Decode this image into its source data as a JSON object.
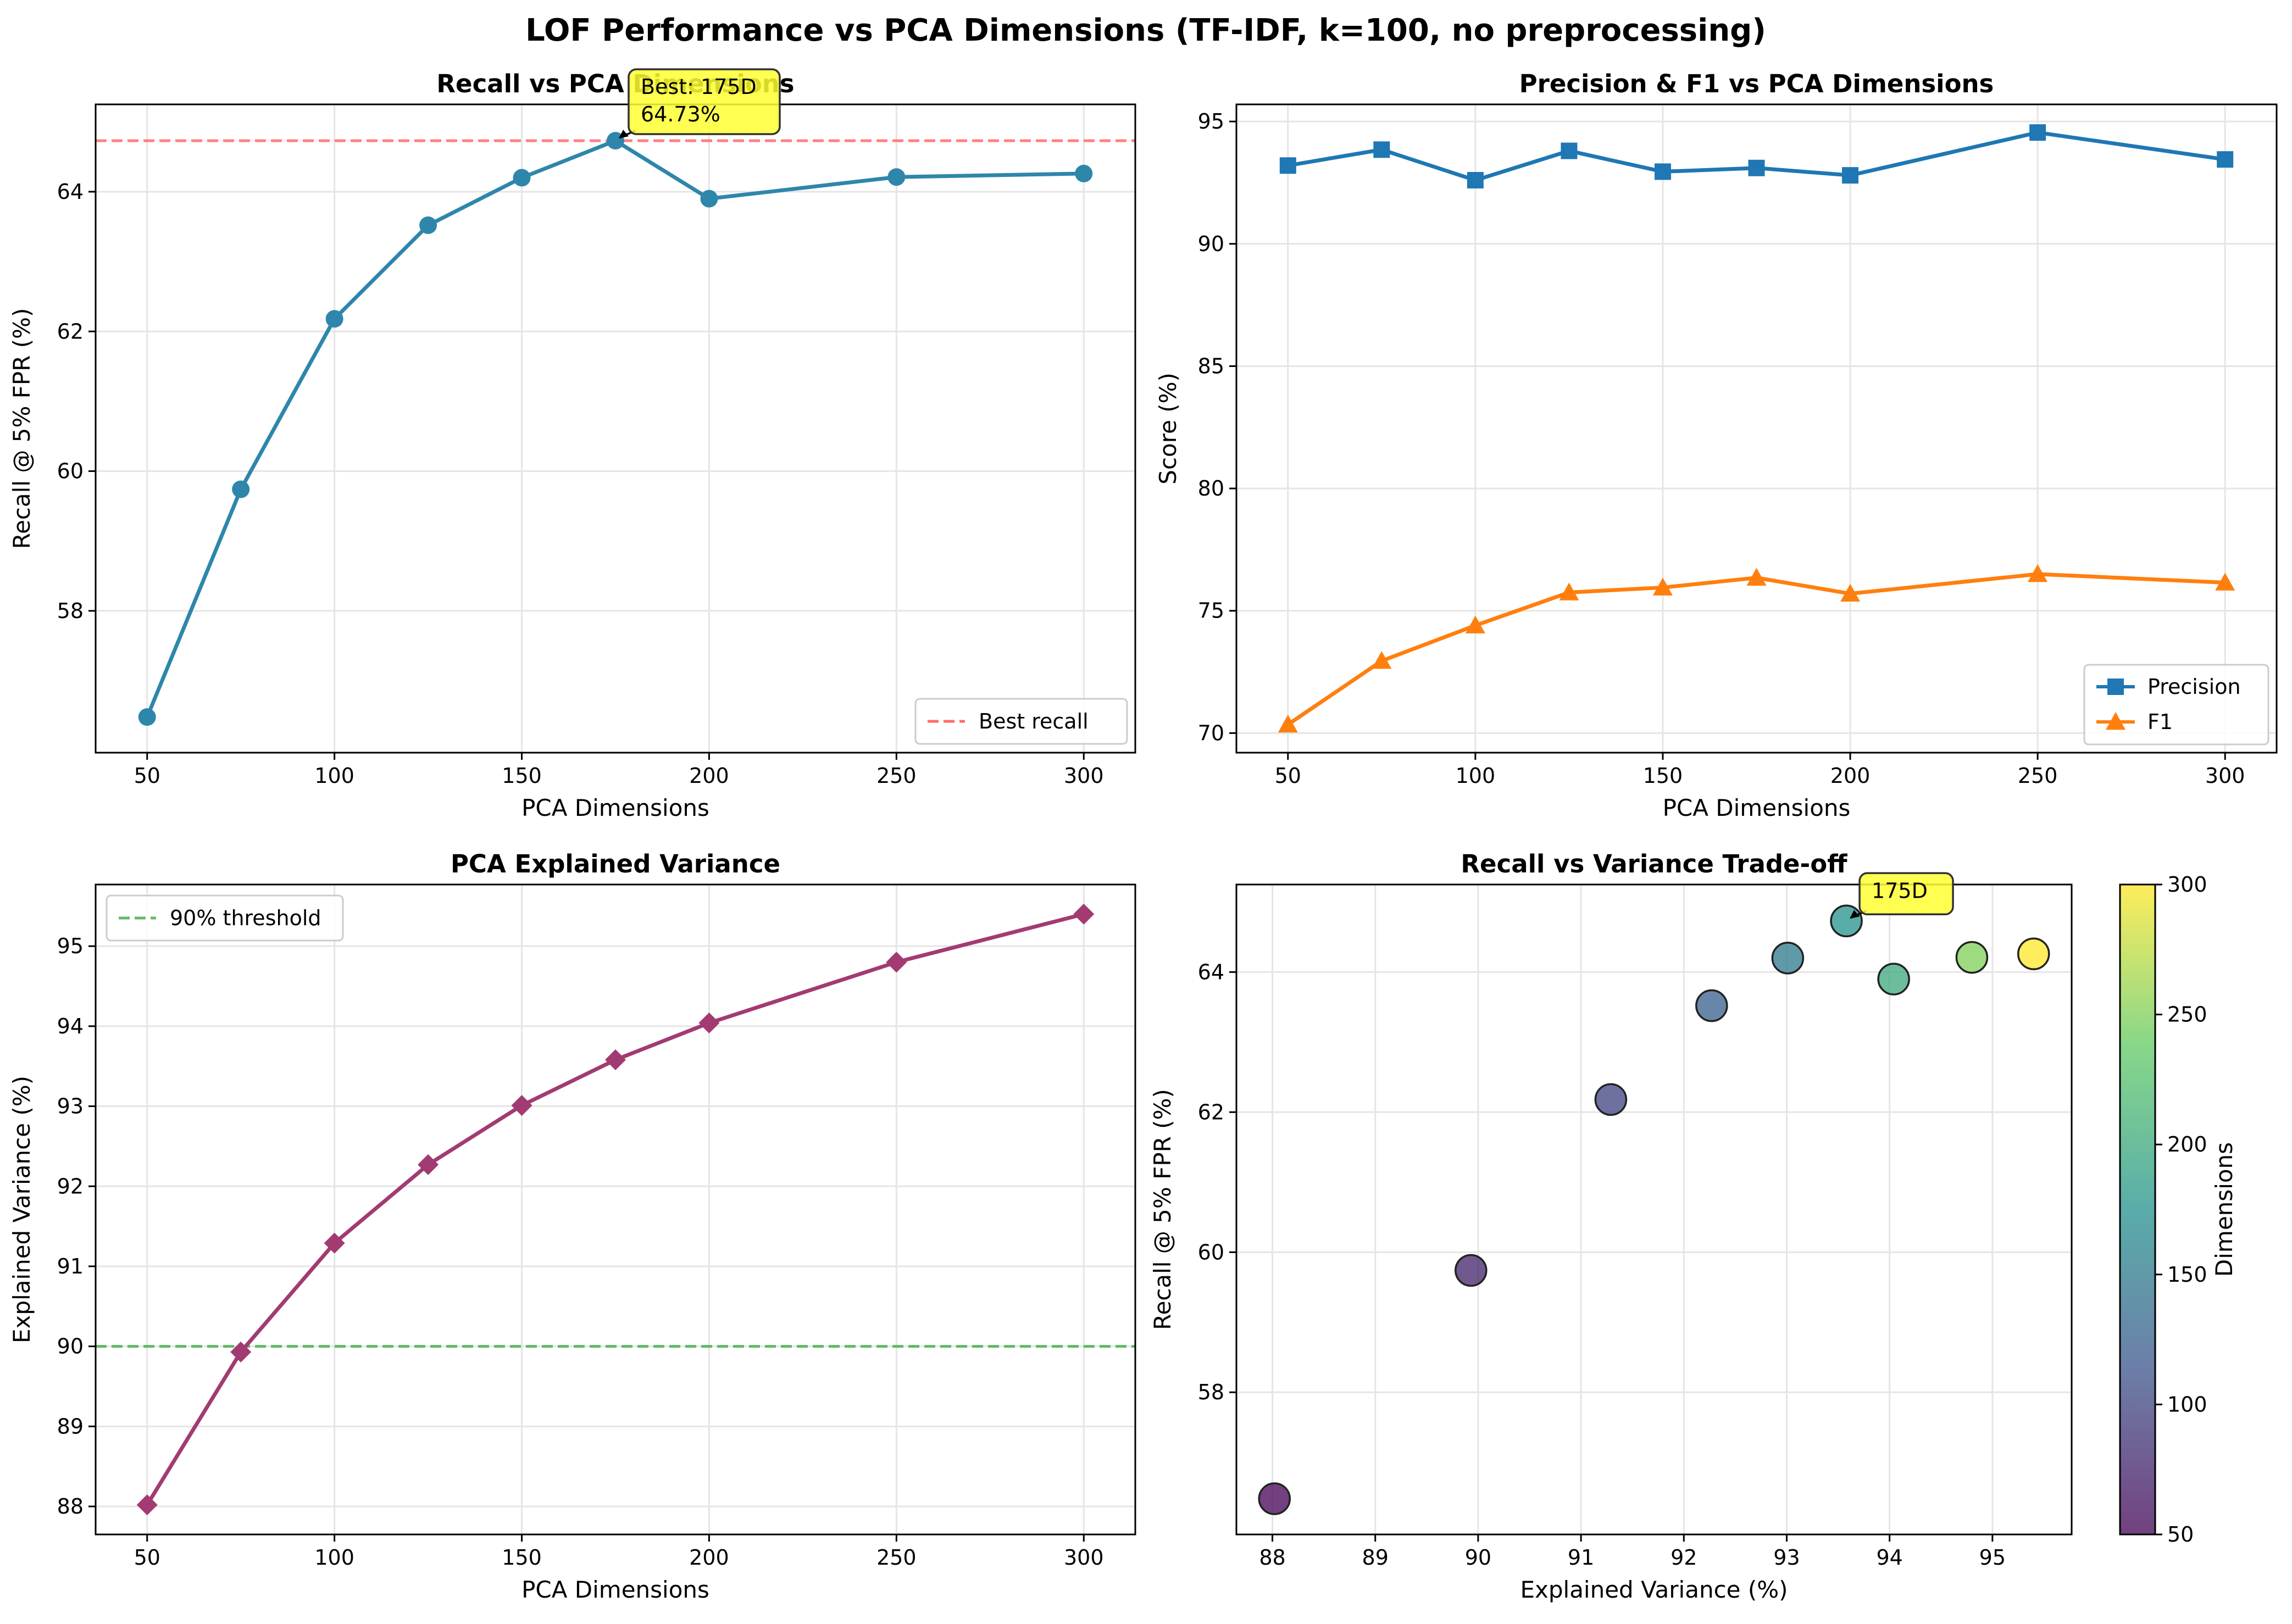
{
  "figure": {
    "title": "LOF Performance vs PCA Dimensions (TF-IDF, k=100, no preprocessing)"
  },
  "chart_data": [
    {
      "type": "line",
      "title": "Recall vs PCA Dimensions",
      "xlabel": "PCA Dimensions",
      "ylabel": "Recall @ 5% FPR (%)",
      "x": [
        50,
        75,
        100,
        125,
        150,
        175,
        200,
        250,
        300
      ],
      "xticks": [
        50,
        100,
        150,
        200,
        250,
        300
      ],
      "xlim": [
        36.25,
        313.75
      ],
      "yticks": [
        58,
        60,
        62,
        64
      ],
      "ylim": [
        55.97,
        65.25
      ],
      "grid": true,
      "series": [
        {
          "values": [
            56.48,
            59.74,
            62.18,
            63.52,
            64.2,
            64.73,
            63.9,
            64.21,
            64.26
          ],
          "color": "#2E86AB",
          "marker": "circle"
        }
      ],
      "reference_line": {
        "y": 64.73,
        "label": "Best recall",
        "color": "#ff6b6b",
        "style": "dashed"
      },
      "annotation": {
        "lines": [
          "Best: 175D",
          "64.73%"
        ],
        "x": 175,
        "y": 64.73
      },
      "legend_position": "lower right"
    },
    {
      "type": "line",
      "title": "Precision & F1 vs PCA Dimensions",
      "xlabel": "PCA Dimensions",
      "ylabel": "Score (%)",
      "x": [
        50,
        75,
        100,
        125,
        150,
        175,
        200,
        250,
        300
      ],
      "xticks": [
        50,
        100,
        150,
        200,
        250,
        300
      ],
      "xlim": [
        36.25,
        313.75
      ],
      "yticks": [
        70,
        75,
        80,
        85,
        90,
        95
      ],
      "ylim": [
        69.2,
        95.7
      ],
      "grid": true,
      "series": [
        {
          "name": "Precision",
          "values": [
            93.2,
            93.85,
            92.6,
            93.8,
            92.95,
            93.1,
            92.8,
            94.55,
            93.45
          ],
          "color": "#1f77b4",
          "marker": "square"
        },
        {
          "name": "F1",
          "values": [
            70.35,
            72.95,
            74.4,
            75.75,
            75.95,
            76.35,
            75.7,
            76.5,
            76.15
          ],
          "color": "#ff7f0e",
          "marker": "triangle"
        }
      ],
      "legend_position": "lower right"
    },
    {
      "type": "line",
      "title": "PCA Explained Variance",
      "xlabel": "PCA Dimensions",
      "ylabel": "Explained Variance (%)",
      "x": [
        50,
        75,
        100,
        125,
        150,
        175,
        200,
        250,
        300
      ],
      "xticks": [
        50,
        100,
        150,
        200,
        250,
        300
      ],
      "xlim": [
        36.25,
        313.75
      ],
      "yticks": [
        88,
        89,
        90,
        91,
        92,
        93,
        94,
        95
      ],
      "ylim": [
        87.65,
        95.77
      ],
      "grid": true,
      "series": [
        {
          "values": [
            88.02,
            89.93,
            91.29,
            92.27,
            93.01,
            93.58,
            94.04,
            94.8,
            95.4
          ],
          "color": "#A23B72",
          "marker": "diamond"
        }
      ],
      "reference_line": {
        "y": 90,
        "label": "90% threshold",
        "color": "#4caf50",
        "style": "dashed"
      },
      "legend_position": "upper left"
    },
    {
      "type": "scatter",
      "title": "Recall vs Variance Trade-off",
      "xlabel": "Explained Variance (%)",
      "ylabel": "Recall @ 5% FPR (%)",
      "xticks": [
        88,
        89,
        90,
        91,
        92,
        93,
        94,
        95
      ],
      "xlim": [
        87.65,
        95.77
      ],
      "yticks": [
        58,
        60,
        62,
        64
      ],
      "ylim": [
        55.97,
        65.25
      ],
      "grid": true,
      "points": [
        {
          "x": 88.02,
          "y": 56.48,
          "dim": 50
        },
        {
          "x": 89.93,
          "y": 59.74,
          "dim": 75
        },
        {
          "x": 91.29,
          "y": 62.18,
          "dim": 100
        },
        {
          "x": 92.27,
          "y": 63.52,
          "dim": 125
        },
        {
          "x": 93.01,
          "y": 64.2,
          "dim": 150
        },
        {
          "x": 93.58,
          "y": 64.73,
          "dim": 175
        },
        {
          "x": 94.04,
          "y": 63.9,
          "dim": 200
        },
        {
          "x": 94.8,
          "y": 64.21,
          "dim": 250
        },
        {
          "x": 95.4,
          "y": 64.26,
          "dim": 300
        }
      ],
      "annotation": {
        "lines": [
          "175D"
        ],
        "x": 93.58,
        "y": 64.73
      },
      "colorbar": {
        "label": "Dimensions",
        "ticks": [
          50,
          100,
          150,
          200,
          250,
          300
        ],
        "range": [
          50,
          300
        ],
        "colormap": "viridis"
      }
    }
  ]
}
